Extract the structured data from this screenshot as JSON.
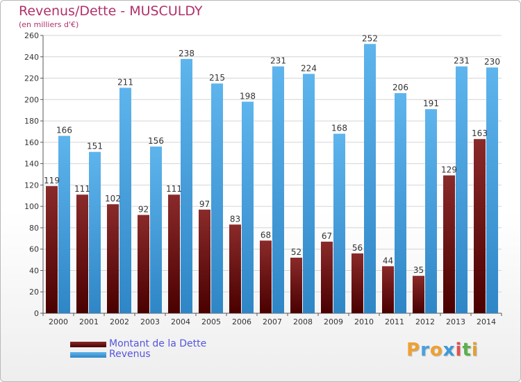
{
  "header": {
    "title": "Revenus/Dette - MUSCULDY",
    "subtitle": "(en milliers d'€)"
  },
  "legend": [
    {
      "label": "Montant de la Dette",
      "color": "#6b1a1a"
    },
    {
      "label": "Revenus",
      "color": "#4aa3e0"
    }
  ],
  "logo": {
    "letters": [
      "P",
      "r",
      "o",
      "x",
      "i",
      "t",
      "i"
    ],
    "colors": [
      "#f0a030",
      "#4aa0e0",
      "#f0a030",
      "#3a9ad9",
      "#e05050",
      "#5ab04a",
      "#e0a030"
    ]
  },
  "chart_data": {
    "type": "bar",
    "categories": [
      "2000",
      "2001",
      "2002",
      "2003",
      "2004",
      "2005",
      "2006",
      "2007",
      "2008",
      "2009",
      "2010",
      "2011",
      "2012",
      "2013",
      "2014"
    ],
    "series": [
      {
        "name": "Montant de la Dette",
        "color": "#6b1a1a",
        "values": [
          119,
          111,
          102,
          92,
          111,
          97,
          83,
          68,
          52,
          67,
          56,
          44,
          35,
          129,
          163
        ]
      },
      {
        "name": "Revenus",
        "color": "#4aa3e0",
        "values": [
          166,
          151,
          211,
          156,
          238,
          215,
          198,
          231,
          224,
          168,
          252,
          206,
          191,
          231,
          230
        ]
      }
    ],
    "ylim": [
      0,
      260
    ],
    "ytick_step": 20,
    "grid": true,
    "legend_position": "bottom-left"
  }
}
